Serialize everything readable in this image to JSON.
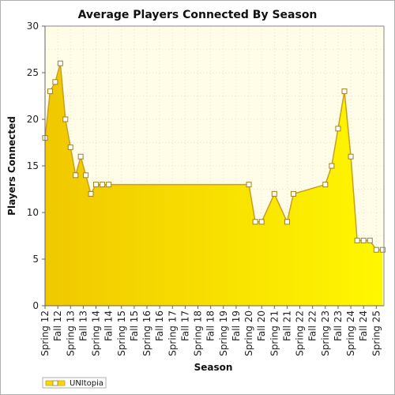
{
  "chart_data": {
    "type": "area",
    "title": "Average Players Connected By Season",
    "xlabel": "Season",
    "ylabel": "Players Connected",
    "ylim": [
      0,
      30
    ],
    "yticks": [
      0,
      5,
      10,
      15,
      20,
      25,
      30
    ],
    "grid": true,
    "legend_position": "bottom-left",
    "xtick_labels": [
      "Spring 12",
      "Fall 12",
      "Spring 13",
      "Fall 13",
      "Spring 14",
      "Fall 14",
      "Spring 15",
      "Fall 15",
      "Spring 16",
      "Fall 16",
      "Spring 17",
      "Fall 17",
      "Spring 18",
      "Fall 18",
      "Spring 19",
      "Fall 19",
      "Spring 20",
      "Fall 20",
      "Spring 21",
      "Fall 21",
      "Spring 22",
      "Fall 22",
      "Spring 23",
      "Fall 23",
      "Spring 24",
      "Fall 24",
      "Spring 25"
    ],
    "xlim": [
      0,
      26.6
    ],
    "colors": {
      "fill_light": "#fff700",
      "fill_dark": "#f0c800",
      "line": "#c8a020",
      "marker_edge": "#a08020",
      "marker_fill": "#ffffff",
      "plot_bg": "#fffde8",
      "grid": "#e8e0a8"
    },
    "series": [
      {
        "name": "UNItopia",
        "points": [
          {
            "x": 0.0,
            "y": 18
          },
          {
            "x": 0.4,
            "y": 23
          },
          {
            "x": 0.8,
            "y": 24
          },
          {
            "x": 1.2,
            "y": 26
          },
          {
            "x": 1.6,
            "y": 20
          },
          {
            "x": 2.0,
            "y": 17
          },
          {
            "x": 2.4,
            "y": 14
          },
          {
            "x": 2.8,
            "y": 16
          },
          {
            "x": 3.2,
            "y": 14
          },
          {
            "x": 3.6,
            "y": 12
          },
          {
            "x": 4.0,
            "y": 13
          },
          {
            "x": 4.5,
            "y": 13
          },
          {
            "x": 5.0,
            "y": 13
          },
          {
            "x": 16.0,
            "y": 13
          },
          {
            "x": 16.5,
            "y": 9
          },
          {
            "x": 17.0,
            "y": 9
          },
          {
            "x": 18.0,
            "y": 12
          },
          {
            "x": 19.0,
            "y": 9
          },
          {
            "x": 19.5,
            "y": 12
          },
          {
            "x": 22.0,
            "y": 13
          },
          {
            "x": 22.5,
            "y": 15
          },
          {
            "x": 23.0,
            "y": 19
          },
          {
            "x": 23.5,
            "y": 23
          },
          {
            "x": 24.0,
            "y": 16
          },
          {
            "x": 24.5,
            "y": 7
          },
          {
            "x": 25.0,
            "y": 7
          },
          {
            "x": 25.5,
            "y": 7
          },
          {
            "x": 26.0,
            "y": 6
          },
          {
            "x": 26.5,
            "y": 6
          }
        ]
      }
    ]
  }
}
